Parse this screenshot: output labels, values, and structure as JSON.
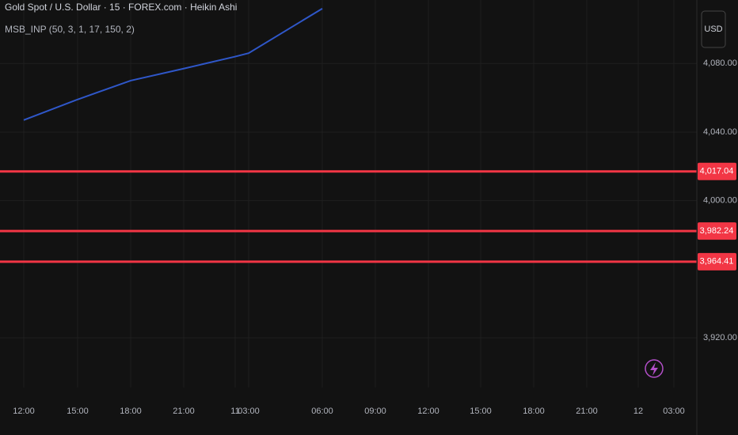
{
  "chart_data": {
    "type": "line",
    "title": "Gold Spot / U.S. Dollar · 15 · FOREX.com · Heikin Ashi",
    "subtitle": "MSB_INP (50, 3, 1, 17, 150, 2)",
    "currency": "USD",
    "categories": [
      "12:00",
      "15:00",
      "18:00",
      "21:00",
      "11",
      "03:00",
      "06:00",
      "09:00",
      "12:00",
      "15:00",
      "18:00",
      "21:00",
      "12",
      "03:00"
    ],
    "series": [
      {
        "color": "#2f57c9",
        "values": [
          4047,
          4059,
          4070,
          4077,
          4084,
          4086,
          4112,
          null,
          null,
          null,
          null,
          null,
          null,
          null
        ]
      }
    ],
    "levels": [
      {
        "value": 4017.04,
        "label": "4,017.04"
      },
      {
        "value": 3982.24,
        "label": "3,982.24"
      },
      {
        "value": 3964.41,
        "label": "3,964.41"
      }
    ],
    "level_color": "#f23645",
    "ylim": [
      3891,
      4117
    ],
    "yticks": [
      {
        "value": 3920,
        "label": "3,920.00"
      },
      {
        "value": 4000,
        "label": "4,000.00"
      },
      {
        "value": 4040,
        "label": "4,040.00"
      },
      {
        "value": 4080,
        "label": "4,080.00"
      }
    ],
    "grid": true
  }
}
